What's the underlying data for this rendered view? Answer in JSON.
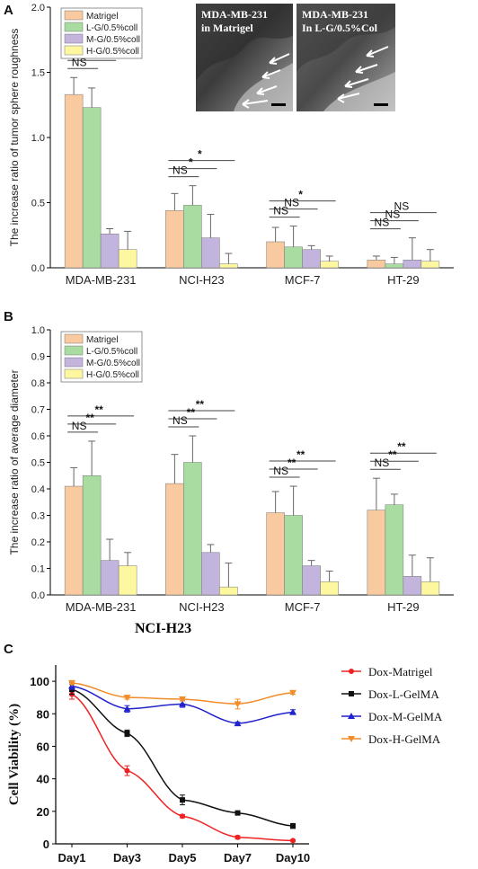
{
  "figure": {
    "panels": [
      "A",
      "B",
      "C"
    ],
    "section_title": "NCI-H23",
    "inset_images": [
      {
        "label_line1": "MDA-MB-231",
        "label_line2": "in Matrigel"
      },
      {
        "label_line1": "MDA-MB-231",
        "label_line2": "In L-G/0.5%Col"
      }
    ],
    "colors": {
      "matrigel": "#f9c9a0",
      "lg": "#a8dca0",
      "mg": "#c2b4dc",
      "hg": "#fdf7a0",
      "dox_matrigel": "#ee2222",
      "dox_lgelma": "#111111",
      "dox_mgelma": "#2222cc",
      "dox_hgelma": "#f28c28"
    }
  },
  "chart_data": [
    {
      "type": "bar",
      "panel": "A",
      "ylabel": "The increase ratio of tumor sphere roughness",
      "ylim": [
        0,
        2.0
      ],
      "yticks": [
        "0.0",
        "0.5",
        "1.0",
        "1.5",
        "2.0"
      ],
      "categories": [
        "MDA-MB-231",
        "NCI-H23",
        "MCF-7",
        "HT-29"
      ],
      "series": [
        {
          "name": "Matrigel",
          "values": [
            1.33,
            0.44,
            0.2,
            0.06
          ],
          "errors": [
            0.13,
            0.13,
            0.11,
            0.03
          ]
        },
        {
          "name": "L-G/0.5%coll",
          "values": [
            1.23,
            0.48,
            0.16,
            0.03
          ],
          "errors": [
            0.15,
            0.15,
            0.16,
            0.05
          ]
        },
        {
          "name": "M-G/0.5%coll",
          "values": [
            0.26,
            0.23,
            0.14,
            0.06
          ],
          "errors": [
            0.04,
            0.18,
            0.03,
            0.17
          ]
        },
        {
          "name": "H-G/0.5%coll",
          "values": [
            0.14,
            0.03,
            0.05,
            0.05
          ],
          "errors": [
            0.14,
            0.08,
            0.04,
            0.09
          ]
        }
      ],
      "significance": [
        {
          "group": "MDA-MB-231",
          "labels": [
            "**",
            "**",
            "NS"
          ]
        },
        {
          "group": "NCI-H23",
          "labels": [
            "*",
            "*",
            "NS"
          ]
        },
        {
          "group": "MCF-7",
          "labels": [
            "*",
            "NS",
            "NS"
          ]
        },
        {
          "group": "HT-29",
          "labels": [
            "NS",
            "NS",
            "NS"
          ]
        }
      ],
      "legend_position": "top-left"
    },
    {
      "type": "bar",
      "panel": "B",
      "ylabel": "The increase ratio of average diameter",
      "ylim": [
        0,
        1.0
      ],
      "yticks": [
        "0.0",
        "0.1",
        "0.2",
        "0.3",
        "0.4",
        "0.5",
        "0.6",
        "0.7",
        "0.8",
        "0.9",
        "1.0"
      ],
      "categories": [
        "MDA-MB-231",
        "NCI-H23",
        "MCF-7",
        "HT-29"
      ],
      "series": [
        {
          "name": "Matrigel",
          "values": [
            0.41,
            0.42,
            0.31,
            0.32
          ],
          "errors": [
            0.07,
            0.11,
            0.08,
            0.12
          ]
        },
        {
          "name": "L-G/0.5%coll",
          "values": [
            0.45,
            0.5,
            0.3,
            0.34
          ],
          "errors": [
            0.13,
            0.1,
            0.11,
            0.04
          ]
        },
        {
          "name": "M-G/0.5%coll",
          "values": [
            0.13,
            0.16,
            0.11,
            0.07
          ],
          "errors": [
            0.08,
            0.03,
            0.02,
            0.08
          ]
        },
        {
          "name": "H-G/0.5%coll",
          "values": [
            0.11,
            0.03,
            0.05,
            0.05
          ],
          "errors": [
            0.05,
            0.09,
            0.04,
            0.09
          ]
        }
      ],
      "significance": [
        {
          "group": "MDA-MB-231",
          "labels": [
            "**",
            "**",
            "NS"
          ]
        },
        {
          "group": "NCI-H23",
          "labels": [
            "**",
            "**",
            "NS"
          ]
        },
        {
          "group": "MCF-7",
          "labels": [
            "**",
            "**",
            "NS"
          ]
        },
        {
          "group": "HT-29",
          "labels": [
            "**",
            "**",
            "NS"
          ]
        }
      ],
      "legend_position": "top-left"
    },
    {
      "type": "line",
      "panel": "C",
      "ylabel": "Cell Viability (%)",
      "ylim": [
        0,
        110
      ],
      "yticks": [
        "0",
        "20",
        "40",
        "60",
        "80",
        "100"
      ],
      "categories": [
        "Day1",
        "Day3",
        "Day5",
        "Day7",
        "Day10"
      ],
      "series": [
        {
          "name": "Dox-Matrigel",
          "values": [
            92,
            45,
            17,
            4,
            2
          ],
          "errors": [
            3,
            3,
            1,
            1,
            0.5
          ]
        },
        {
          "name": "Dox-L-GelMA",
          "values": [
            95,
            68,
            27,
            19,
            11
          ],
          "errors": [
            3,
            2,
            3,
            1,
            1.5
          ]
        },
        {
          "name": "Dox-M-GelMA",
          "values": [
            97,
            83,
            86,
            74,
            81
          ],
          "errors": [
            2,
            2,
            2,
            1,
            1.5
          ]
        },
        {
          "name": "Dox-H-GelMA",
          "values": [
            99,
            90,
            89,
            86,
            93
          ],
          "errors": [
            1,
            1,
            1,
            3,
            1
          ]
        }
      ],
      "legend_position": "right"
    }
  ]
}
